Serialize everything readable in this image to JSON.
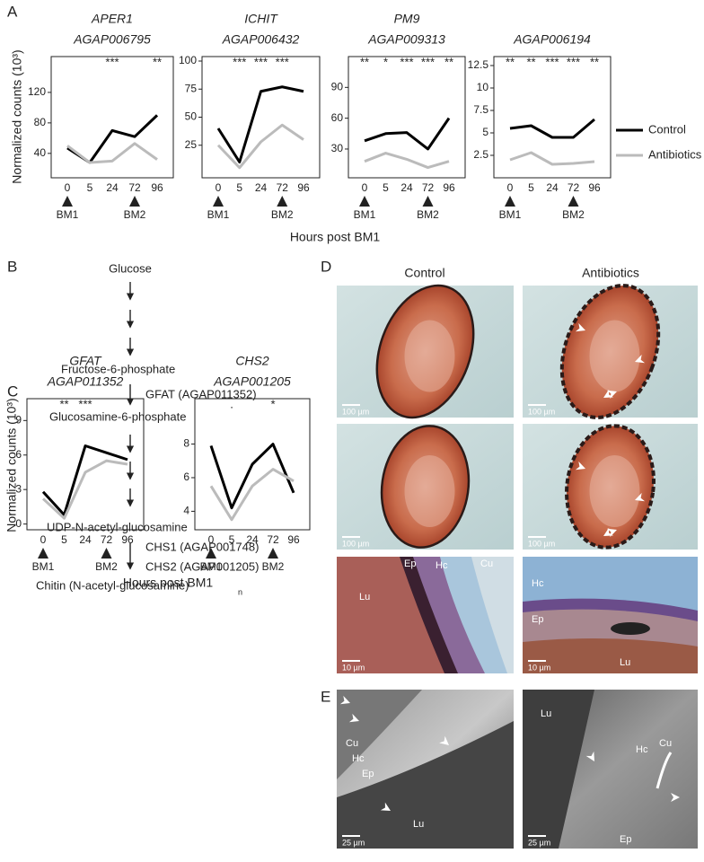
{
  "panel_labels": [
    "A",
    "B",
    "C",
    "D",
    "E"
  ],
  "panel_A": {
    "ylabel": "Normalized counts (10³)",
    "xlabel": "Hours post BM1"
  },
  "panel_C": {
    "ylabel": "Normalized counts (10³)",
    "xlabel": "Hours post BM1"
  },
  "chart_data": [
    {
      "type": "line",
      "title": "APER1",
      "subtitle": "AGAP006795",
      "categories": [
        "0",
        "5",
        "24",
        "72",
        "96"
      ],
      "series": [
        {
          "name": "Control",
          "color": "#000000",
          "values": [
            47,
            28,
            70,
            62,
            90
          ]
        },
        {
          "name": "Antibiotics",
          "color": "#bbbbbb",
          "values": [
            50,
            28,
            30,
            53,
            32
          ]
        }
      ],
      "significance": [
        null,
        null,
        "***",
        null,
        "**"
      ],
      "markers": [
        {
          "at": "0",
          "label": "BM1"
        },
        {
          "at": "72",
          "label": "BM2"
        }
      ],
      "ylim": [
        8,
        167
      ],
      "yticks": [
        40,
        80,
        120
      ]
    },
    {
      "type": "line",
      "title": "ICHIT",
      "subtitle": "AGAP006432",
      "categories": [
        "0",
        "5",
        "24",
        "72",
        "96"
      ],
      "series": [
        {
          "name": "Control",
          "color": "#000000",
          "values": [
            40,
            10,
            73,
            77,
            73
          ]
        },
        {
          "name": "Antibiotics",
          "color": "#bbbbbb",
          "values": [
            25,
            5,
            28,
            43,
            30
          ]
        }
      ],
      "significance": [
        null,
        "***",
        "***",
        "***",
        null
      ],
      "markers": [
        {
          "at": "0",
          "label": "BM1"
        },
        {
          "at": "72",
          "label": "BM2"
        }
      ],
      "ylim": [
        -4,
        104
      ],
      "yticks": [
        25,
        50,
        75,
        100
      ]
    },
    {
      "type": "line",
      "title": "PM9",
      "subtitle": "AGAP009313",
      "categories": [
        "0",
        "5",
        "24",
        "72",
        "96"
      ],
      "series": [
        {
          "name": "Control",
          "color": "#000000",
          "values": [
            38,
            45,
            46,
            30,
            60
          ]
        },
        {
          "name": "Antibiotics",
          "color": "#bbbbbb",
          "values": [
            18,
            26,
            20,
            12,
            18
          ]
        }
      ],
      "significance": [
        "**",
        "*",
        "***",
        "***",
        "**"
      ],
      "markers": [
        {
          "at": "0",
          "label": "BM1"
        },
        {
          "at": "72",
          "label": "BM2"
        }
      ],
      "ylim": [
        2,
        120
      ],
      "yticks": [
        30,
        60,
        90
      ]
    },
    {
      "type": "line",
      "title": "AGAP006194",
      "categories": [
        "0",
        "5",
        "24",
        "72",
        "96"
      ],
      "series": [
        {
          "name": "Control",
          "color": "#000000",
          "values": [
            5.5,
            5.8,
            4.5,
            4.5,
            6.5
          ]
        },
        {
          "name": "Antibiotics",
          "color": "#bbbbbb",
          "values": [
            2,
            2.8,
            1.5,
            1.6,
            1.8
          ]
        }
      ],
      "significance": [
        "**",
        "**",
        "***",
        "***",
        "**"
      ],
      "markers": [
        {
          "at": "0",
          "label": "BM1"
        },
        {
          "at": "72",
          "label": "BM2"
        }
      ],
      "ylim": [
        0,
        13.5
      ],
      "yticks": [
        2.5,
        5,
        7.5,
        10,
        12.5
      ]
    },
    {
      "type": "line",
      "title": "GFAT",
      "subtitle": "AGAP011352",
      "categories": [
        "0",
        "5",
        "24",
        "72",
        "96"
      ],
      "series": [
        {
          "name": "Control",
          "color": "#000000",
          "values": [
            2.8,
            0.8,
            6.8,
            6.2,
            5.6
          ]
        },
        {
          "name": "Antibiotics",
          "color": "#bbbbbb",
          "values": [
            2.2,
            0.5,
            4.5,
            5.5,
            5.2
          ]
        }
      ],
      "significance": [
        null,
        "**",
        "***",
        null,
        null
      ],
      "markers": [
        {
          "at": "0",
          "label": "BM1"
        },
        {
          "at": "72",
          "label": "BM2"
        }
      ],
      "ylim": [
        -0.5,
        10.9
      ],
      "yticks": [
        0,
        3,
        6,
        9
      ]
    },
    {
      "type": "line",
      "title": "CHS2",
      "subtitle": "AGAP001205",
      "categories": [
        "0",
        "5",
        "24",
        "72",
        "96"
      ],
      "series": [
        {
          "name": "Control",
          "color": "#000000",
          "values": [
            7.9,
            4.2,
            6.8,
            8,
            5.1
          ]
        },
        {
          "name": "Antibiotics",
          "color": "#bbbbbb",
          "values": [
            5.5,
            3.5,
            5.5,
            6.5,
            5.8
          ]
        }
      ],
      "significance": [
        null,
        ".",
        null,
        "*",
        null
      ],
      "markers": [
        {
          "at": "0",
          "label": "BM1"
        },
        {
          "at": "72",
          "label": "BM2"
        }
      ],
      "ylim": [
        2.9,
        10.7
      ],
      "yticks": [
        4,
        6,
        8
      ]
    }
  ],
  "pathway": {
    "nodes": [
      "Glucose",
      "Fructose-6-phosphate",
      "Glucosamine-6-phosphate",
      "UDP-N-acetyl-glucosamine",
      "Chitin (N-acetyl-glucosamine)"
    ],
    "chitin_subscript": "n",
    "enzymes": [
      "GFAT (AGAP011352)",
      "CHS1 (AGAP001748)",
      "CHS2 (AGAP001205)"
    ]
  },
  "panel_D": {
    "columns": [
      "Control",
      "Antibiotics"
    ],
    "images": [
      {
        "scale": "100 µm",
        "labels": []
      },
      {
        "scale": "100 µm",
        "labels": []
      },
      {
        "scale": "100 µm",
        "labels": []
      },
      {
        "scale": "100 µm",
        "labels": []
      },
      {
        "scale": "10 µm",
        "labels": [
          "Lu",
          "Ep",
          "Hc",
          "Cu"
        ]
      },
      {
        "scale": "10 µm",
        "labels": [
          "Hc",
          "Ep",
          "Lu"
        ]
      }
    ]
  },
  "panel_E": {
    "images": [
      {
        "scale": "25 µm",
        "labels": [
          "Cu",
          "Hc",
          "Ep",
          "Lu"
        ]
      },
      {
        "scale": "25 µm",
        "labels": [
          "Lu",
          "Hc",
          "Cu",
          "Ep"
        ]
      }
    ]
  }
}
